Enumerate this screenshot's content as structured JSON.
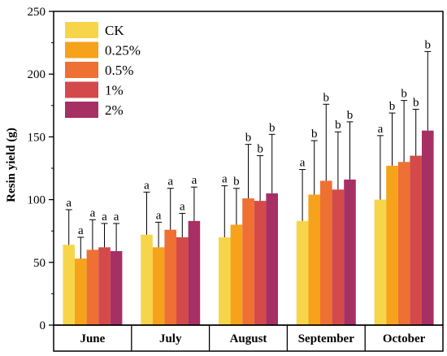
{
  "chart_data": {
    "type": "bar",
    "title": "",
    "xlabel": "",
    "ylabel": "Resin yield (g)",
    "ylim": [
      0,
      250
    ],
    "yticks": [
      "0",
      "50",
      "100",
      "150",
      "200",
      "250"
    ],
    "categories": [
      "June",
      "July",
      "August",
      "September",
      "October"
    ],
    "legend_position": "top-left",
    "series": [
      {
        "name": "CK",
        "color": "#F7D54A",
        "values": [
          64,
          72,
          70,
          83,
          100
        ],
        "errors": [
          28,
          34,
          41,
          41,
          51
        ],
        "sig": [
          "a",
          "a",
          "a",
          "a",
          "a"
        ]
      },
      {
        "name": "0.25%",
        "color": "#F7A21B",
        "values": [
          53,
          62,
          80,
          104,
          127
        ],
        "errors": [
          17,
          20,
          29,
          43,
          42
        ],
        "sig": [
          "a",
          "a",
          "b",
          "b",
          "b"
        ]
      },
      {
        "name": "0.5%",
        "color": "#EE7032",
        "values": [
          60,
          76,
          101,
          115,
          130
        ],
        "errors": [
          24,
          33,
          43,
          61,
          49
        ],
        "sig": [
          "a",
          "a",
          "b",
          "b",
          "b"
        ]
      },
      {
        "name": "1%",
        "color": "#D44A4A",
        "values": [
          62,
          70,
          99,
          108,
          135
        ],
        "errors": [
          19,
          19,
          36,
          46,
          37
        ],
        "sig": [
          "a",
          "a",
          "b",
          "b",
          "b"
        ]
      },
      {
        "name": "2%",
        "color": "#A63064",
        "values": [
          59,
          83,
          105,
          116,
          155
        ],
        "errors": [
          22,
          27,
          47,
          46,
          63
        ],
        "sig": [
          "a",
          "a",
          "b",
          "b",
          "b"
        ]
      }
    ]
  }
}
